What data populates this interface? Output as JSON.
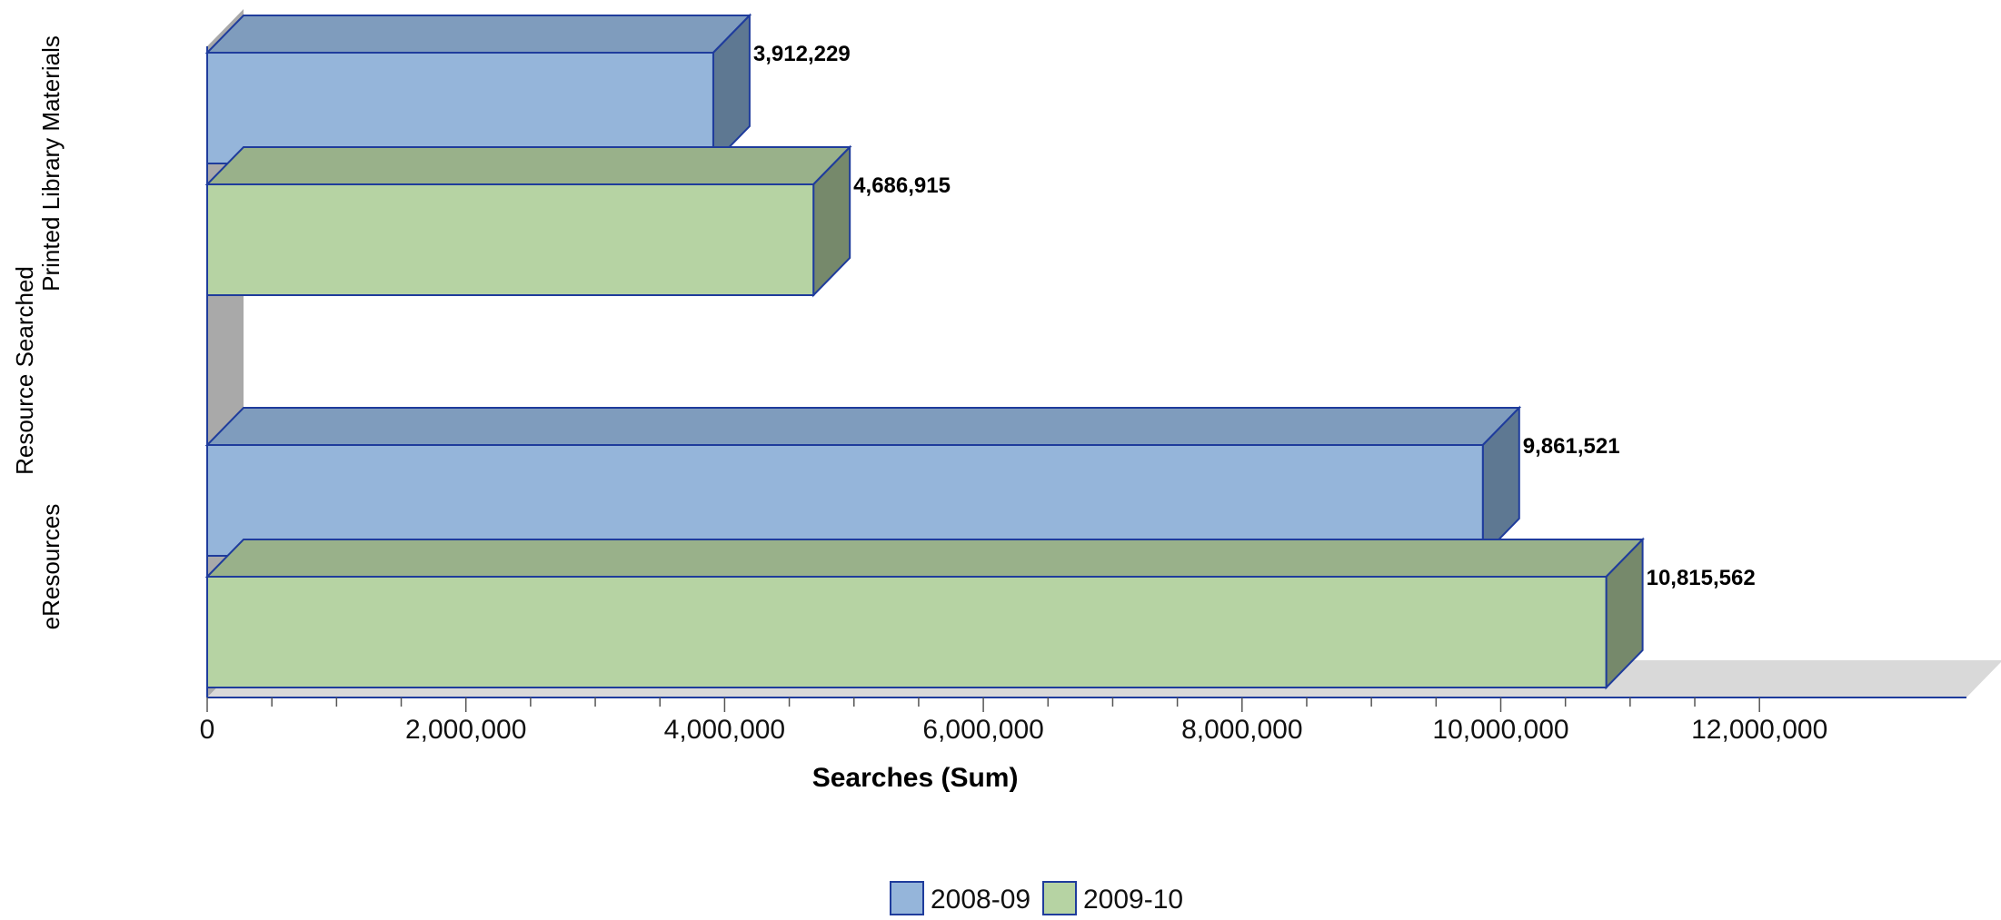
{
  "chart_data": {
    "type": "bar",
    "orientation": "horizontal",
    "three_d": true,
    "categories": [
      "Printed Library Materials",
      "eResources"
    ],
    "series": [
      {
        "name": "2008-09",
        "values": [
          3912229,
          9861521
        ],
        "color": "#95b5da"
      },
      {
        "name": "2009-10",
        "values": [
          4686915,
          10815562
        ],
        "color": "#b6d3a3"
      }
    ],
    "value_labels": [
      [
        "3,912,229",
        "9,861,521"
      ],
      [
        "4,686,915",
        "10,815,562"
      ]
    ],
    "xlabel": "Searches (Sum)",
    "ylabel": "Resource Searched",
    "xlim": [
      0,
      13600000
    ],
    "x_ticks": [
      0,
      2000000,
      4000000,
      6000000,
      8000000,
      10000000,
      12000000
    ],
    "x_tick_labels": [
      "0",
      "2,000,000",
      "4,000,000",
      "6,000,000",
      "8,000,000",
      "10,000,000",
      "12,000,000"
    ],
    "legend_position": "bottom-center",
    "grid": false
  },
  "colors": {
    "series_outline": "#1f3c9c",
    "blue_top": "#7f9cbd",
    "blue_side": "#5e7892",
    "green_top": "#99b18a",
    "green_side": "#76896b",
    "wall": "#a9a9a9",
    "floor": "#d9d9d9",
    "axis": "#1f3c9c"
  }
}
